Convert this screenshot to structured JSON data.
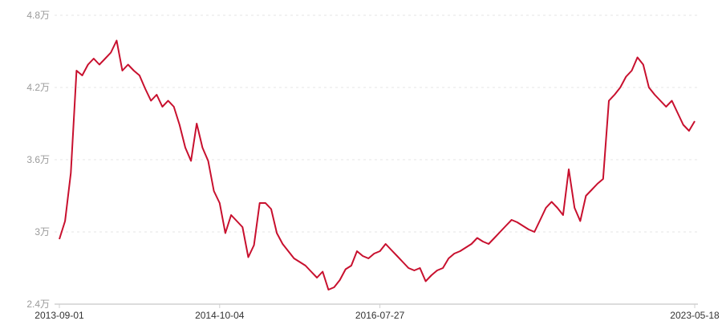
{
  "chart_data": {
    "type": "line",
    "title": "",
    "xlabel": "",
    "ylabel": "",
    "ylim": [
      2.4,
      4.8
    ],
    "y_unit": "万",
    "y_ticks": [
      "2.4万",
      "3万",
      "3.6万",
      "4.2万",
      "4.8万"
    ],
    "y_tick_values": [
      2.4,
      3.0,
      3.6,
      4.2,
      4.8
    ],
    "x_tick_labels": [
      {
        "index": 0,
        "label": "2013-09-01"
      },
      {
        "index": 28,
        "label": "2014-10-04"
      },
      {
        "index": 56,
        "label": "2016-07-27"
      },
      {
        "index": 111,
        "label": "2023-05-18"
      }
    ],
    "grid": "horizontal dashed",
    "line_color": "#c8102e",
    "series": [
      {
        "values": [
          2.94,
          3.09,
          3.49,
          4.34,
          4.3,
          4.39,
          4.44,
          4.39,
          4.44,
          4.49,
          4.59,
          4.34,
          4.39,
          4.34,
          4.3,
          4.19,
          4.09,
          4.14,
          4.04,
          4.09,
          4.04,
          3.89,
          3.7,
          3.59,
          3.9,
          3.7,
          3.59,
          3.34,
          3.24,
          2.99,
          3.14,
          3.09,
          3.04,
          2.79,
          2.89,
          3.24,
          3.24,
          3.19,
          2.99,
          2.9,
          2.84,
          2.78,
          2.75,
          2.72,
          2.67,
          2.62,
          2.67,
          2.52,
          2.54,
          2.6,
          2.69,
          2.72,
          2.84,
          2.8,
          2.78,
          2.82,
          2.84,
          2.9,
          2.85,
          2.8,
          2.75,
          2.7,
          2.68,
          2.7,
          2.59,
          2.64,
          2.68,
          2.7,
          2.78,
          2.82,
          2.84,
          2.87,
          2.9,
          2.95,
          2.92,
          2.9,
          2.95,
          3.0,
          3.05,
          3.1,
          3.08,
          3.05,
          3.02,
          3.0,
          3.1,
          3.2,
          3.25,
          3.2,
          3.14,
          3.52,
          3.2,
          3.09,
          3.3,
          3.35,
          3.4,
          3.44,
          4.09,
          4.14,
          4.2,
          4.29,
          4.34,
          4.45,
          4.39,
          4.2,
          4.14,
          4.09,
          4.04,
          4.09,
          3.99,
          3.89,
          3.84,
          3.92
        ]
      }
    ]
  }
}
